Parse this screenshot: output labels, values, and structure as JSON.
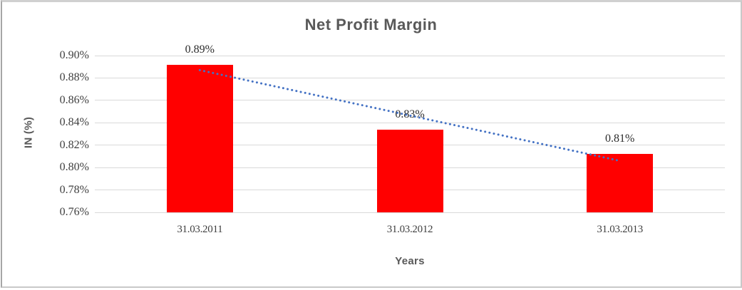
{
  "chart_data": {
    "type": "bar",
    "title": "Net Profit Margin",
    "xlabel": "Years",
    "ylabel": "IN (%)",
    "categories": [
      "31.03.2011",
      "31.03.2012",
      "31.03.2013"
    ],
    "values": [
      0.892,
      0.834,
      0.812
    ],
    "data_labels": [
      "0.89%",
      "0.83%",
      "0.81%"
    ],
    "ylim": [
      0.76,
      0.9
    ],
    "ytick_step": 0.02,
    "ytick_labels": [
      "0.90%",
      "0.88%",
      "0.86%",
      "0.84%",
      "0.82%",
      "0.80%",
      "0.78%",
      "0.76%"
    ],
    "grid": true,
    "legend": false,
    "trendline": {
      "style": "dotted",
      "start": {
        "category_index": 0,
        "value": 0.887
      },
      "end": {
        "category_index": 2,
        "value": 0.806
      }
    }
  },
  "colors": {
    "bar": "#ff0000",
    "trendline": "#4472c4",
    "gridline": "#d9d9d9",
    "title_text": "#595959",
    "tick_text": "#3f3f3f"
  }
}
